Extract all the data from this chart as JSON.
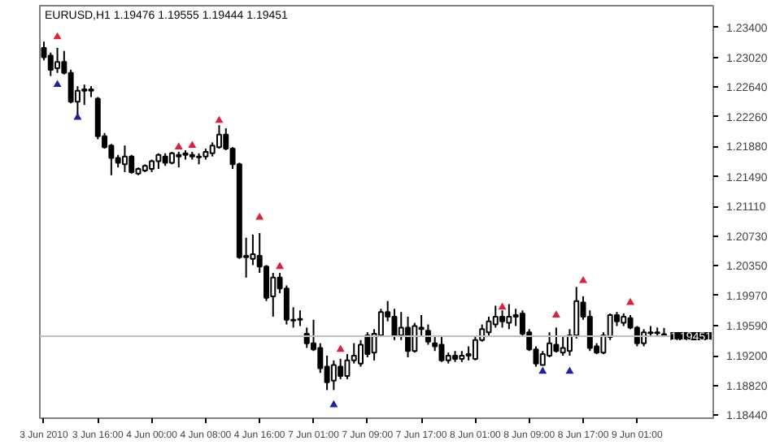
{
  "chart_data": {
    "type": "candlestick",
    "title": "EURUSD,H1  1.19476 1.19555 1.19444 1.19451",
    "categories": [
      "3 Jun 2010",
      null,
      null,
      null,
      null,
      null,
      null,
      null,
      "3 Jun 16:00",
      null,
      null,
      null,
      null,
      null,
      null,
      null,
      "4 Jun 00:00",
      null,
      null,
      null,
      null,
      null,
      null,
      null,
      "4 Jun 08:00",
      null,
      null,
      null,
      null,
      null,
      null,
      null,
      "4 Jun 16:00",
      null,
      null,
      null,
      null,
      null,
      null,
      null,
      "7 Jun 01:00",
      null,
      null,
      null,
      null,
      null,
      null,
      null,
      "7 Jun 09:00",
      null,
      null,
      null,
      null,
      null,
      null,
      null,
      "7 Jun 17:00",
      null,
      null,
      null,
      null,
      null,
      null,
      null,
      "8 Jun 01:00",
      null,
      null,
      null,
      null,
      null,
      null,
      null,
      "8 Jun 09:00",
      null,
      null,
      null,
      null,
      null,
      null,
      null,
      "8 Jun 17:00",
      null,
      null,
      null,
      null,
      null,
      null,
      null,
      "9 Jun 01:00",
      null,
      null,
      null,
      null
    ],
    "ohlc": [
      [
        1.2314,
        1.2322,
        1.2298,
        1.2302
      ],
      [
        1.2304,
        1.2308,
        1.2278,
        1.2286
      ],
      [
        1.2288,
        1.2314,
        1.2282,
        1.2296
      ],
      [
        1.2296,
        1.231,
        1.228,
        1.2282
      ],
      [
        1.2282,
        1.2286,
        1.2243,
        1.2245
      ],
      [
        1.2245,
        1.2265,
        1.2229,
        1.2259
      ],
      [
        1.2259,
        1.2267,
        1.2241,
        1.2261
      ],
      [
        1.2261,
        1.2265,
        1.2251,
        1.2259
      ],
      [
        1.2249,
        1.2251,
        1.2197,
        1.2201
      ],
      [
        1.2201,
        1.2205,
        1.2185,
        1.2187
      ],
      [
        1.2189,
        1.2191,
        1.2151,
        1.2173
      ],
      [
        1.2173,
        1.2177,
        1.2161,
        1.2167
      ],
      [
        1.2165,
        1.2189,
        1.2155,
        1.2175
      ],
      [
        1.2175,
        1.2177,
        1.2153,
        1.2155
      ],
      [
        1.2153,
        1.2161,
        1.2151,
        1.2159
      ],
      [
        1.2157,
        1.2165,
        1.2155,
        1.2163
      ],
      [
        1.2159,
        1.2171,
        1.2155,
        1.2169
      ],
      [
        1.2169,
        1.2179,
        1.2159,
        1.2177
      ],
      [
        1.2175,
        1.2179,
        1.2163,
        1.2167
      ],
      [
        1.2167,
        1.2181,
        1.2165,
        1.2179
      ],
      [
        1.2175,
        1.2181,
        1.2161,
        1.2177
      ],
      [
        1.2177,
        1.2183,
        1.2171,
        1.2179
      ],
      [
        1.2177,
        1.2181,
        1.2171,
        1.2175
      ],
      [
        1.2175,
        1.2179,
        1.2165,
        1.2174
      ],
      [
        1.2175,
        1.2185,
        1.2171,
        1.2181
      ],
      [
        1.2179,
        1.2193,
        1.2175,
        1.2189
      ],
      [
        1.2187,
        1.2215,
        1.2185,
        1.2203
      ],
      [
        1.2203,
        1.2211,
        1.2183,
        1.2185
      ],
      [
        1.2185,
        1.2187,
        1.2159,
        1.2165
      ],
      [
        1.2165,
        1.2167,
        1.2044,
        1.2046
      ],
      [
        1.2048,
        1.2071,
        1.202,
        1.2046
      ],
      [
        1.2044,
        1.2075,
        1.2036,
        1.205
      ],
      [
        1.2048,
        1.2077,
        1.2026,
        1.2034
      ],
      [
        1.2034,
        1.2036,
        1.199,
        1.1994
      ],
      [
        1.1996,
        1.2026,
        1.197,
        1.202
      ],
      [
        1.202,
        1.2026,
        1.2,
        1.2006
      ],
      [
        1.2006,
        1.201,
        1.196,
        1.1966
      ],
      [
        1.1966,
        1.1982,
        1.1956,
        1.1965
      ],
      [
        1.1966,
        1.1978,
        1.1958,
        1.1967
      ],
      [
        1.1948,
        1.1956,
        1.193,
        1.1936
      ],
      [
        1.1936,
        1.1966,
        1.1926,
        1.1928
      ],
      [
        1.193,
        1.1936,
        1.1898,
        1.1904
      ],
      [
        1.1906,
        1.192,
        1.1876,
        1.1886
      ],
      [
        1.1888,
        1.1914,
        1.1876,
        1.1908
      ],
      [
        1.1906,
        1.1916,
        1.189,
        1.1894
      ],
      [
        1.1894,
        1.1922,
        1.189,
        1.1914
      ],
      [
        1.1914,
        1.1936,
        1.191,
        1.192
      ],
      [
        1.191,
        1.194,
        1.1906,
        1.1934
      ],
      [
        1.1946,
        1.195,
        1.1918,
        1.1922
      ],
      [
        1.1924,
        1.1954,
        1.1914,
        1.1948
      ],
      [
        1.1946,
        1.198,
        1.1944,
        1.1976
      ],
      [
        1.1976,
        1.199,
        1.1964,
        1.197
      ],
      [
        1.197,
        1.198,
        1.194,
        1.1946
      ],
      [
        1.1946,
        1.1976,
        1.194,
        1.1956
      ],
      [
        1.1956,
        1.197,
        1.1918,
        1.1926
      ],
      [
        1.1926,
        1.1962,
        1.1924,
        1.1958
      ],
      [
        1.1954,
        1.1972,
        1.1946,
        1.1956
      ],
      [
        1.1952,
        1.196,
        1.1934,
        1.1938
      ],
      [
        1.1936,
        1.1946,
        1.1926,
        1.1932
      ],
      [
        1.1934,
        1.1946,
        1.1912,
        1.1914
      ],
      [
        1.1914,
        1.1924,
        1.191,
        1.192
      ],
      [
        1.192,
        1.1926,
        1.1912,
        1.1916
      ],
      [
        1.1916,
        1.1926,
        1.1912,
        1.192
      ],
      [
        1.192,
        1.1932,
        1.1914,
        1.1922
      ],
      [
        1.1916,
        1.1944,
        1.1914,
        1.194
      ],
      [
        1.194,
        1.196,
        1.1938,
        1.1954
      ],
      [
        1.195,
        1.197,
        1.1946,
        1.1964
      ],
      [
        1.196,
        1.1984,
        1.1956,
        1.197
      ],
      [
        1.197,
        1.1978,
        1.1956,
        1.1964
      ],
      [
        1.1962,
        1.1986,
        1.1954,
        1.197
      ],
      [
        1.197,
        1.198,
        1.1958,
        1.1972
      ],
      [
        1.1974,
        1.1978,
        1.1944,
        1.1948
      ],
      [
        1.195,
        1.1954,
        1.1926,
        1.1928
      ],
      [
        1.1928,
        1.1932,
        1.1906,
        1.191
      ],
      [
        1.1908,
        1.1926,
        1.1908,
        1.1922
      ],
      [
        1.192,
        1.195,
        1.1918,
        1.1936
      ],
      [
        1.1934,
        1.1956,
        1.1924,
        1.1926
      ],
      [
        1.1924,
        1.1946,
        1.192,
        1.193
      ],
      [
        1.1926,
        1.1954,
        1.192,
        1.1946
      ],
      [
        1.1946,
        1.2008,
        1.1942,
        1.199
      ],
      [
        1.1988,
        1.1996,
        1.1966,
        1.197
      ],
      [
        1.197,
        1.1978,
        1.1926,
        1.193
      ],
      [
        1.1932,
        1.1936,
        1.1922,
        1.1924
      ],
      [
        1.1924,
        1.195,
        1.1922,
        1.1946
      ],
      [
        1.1944,
        1.1974,
        1.194,
        1.1972
      ],
      [
        1.1972,
        1.1976,
        1.1958,
        1.1964
      ],
      [
        1.1962,
        1.1974,
        1.1958,
        1.197
      ],
      [
        1.1968,
        1.1972,
        1.1954,
        1.1956
      ],
      [
        1.1956,
        1.1958,
        1.1932,
        1.1936
      ],
      [
        1.1936,
        1.1954,
        1.1932,
        1.195
      ],
      [
        1.1949,
        1.1958,
        1.1944,
        1.195
      ],
      [
        1.195,
        1.1956,
        1.1944,
        1.1949
      ],
      [
        1.19476,
        1.19555,
        1.19444,
        1.19451
      ]
    ],
    "series": [
      {
        "type": "scatter",
        "marker": "triangle",
        "color": "#e0203a",
        "values": [
          null,
          null,
          1.2328,
          null,
          null,
          null,
          null,
          null,
          null,
          null,
          null,
          null,
          null,
          null,
          null,
          null,
          null,
          null,
          null,
          null,
          1.2187,
          null,
          1.2189,
          null,
          null,
          null,
          1.2221,
          null,
          null,
          null,
          null,
          null,
          1.2097,
          null,
          null,
          1.2034,
          null,
          null,
          null,
          null,
          null,
          null,
          null,
          null,
          1.1928,
          null,
          null,
          null,
          null,
          null,
          null,
          null,
          null,
          null,
          null,
          null,
          null,
          null,
          null,
          null,
          null,
          null,
          null,
          null,
          null,
          null,
          null,
          null,
          1.1982,
          null,
          null,
          null,
          null,
          null,
          null,
          null,
          1.1972,
          null,
          null,
          null,
          1.2016,
          null,
          null,
          null,
          null,
          null,
          null,
          1.1988,
          null,
          null,
          null,
          null,
          null
        ]
      },
      {
        "type": "scatter",
        "marker": "triangle",
        "color": "#2020a0",
        "values": [
          null,
          null,
          1.2267,
          null,
          null,
          1.2225,
          null,
          null,
          null,
          null,
          null,
          null,
          null,
          null,
          null,
          null,
          null,
          null,
          null,
          null,
          null,
          null,
          null,
          null,
          null,
          null,
          null,
          null,
          null,
          null,
          null,
          null,
          null,
          null,
          null,
          null,
          null,
          null,
          null,
          null,
          null,
          null,
          null,
          1.1857,
          null,
          null,
          null,
          null,
          null,
          null,
          null,
          null,
          null,
          null,
          null,
          null,
          null,
          null,
          null,
          null,
          null,
          null,
          null,
          null,
          null,
          null,
          null,
          null,
          null,
          null,
          null,
          null,
          null,
          null,
          1.19,
          null,
          null,
          null,
          1.19,
          null,
          null,
          null,
          null,
          null,
          null,
          null,
          null,
          null,
          null,
          null,
          null,
          null,
          null
        ]
      }
    ],
    "ylim": [
      1.184,
      1.2368
    ],
    "yticks": [
      {
        "value": 1.234,
        "label": "1.23400"
      },
      {
        "value": 1.2302,
        "label": "1.23020"
      },
      {
        "value": 1.2264,
        "label": "1.22640"
      },
      {
        "value": 1.2226,
        "label": "1.22260"
      },
      {
        "value": 1.2188,
        "label": "1.21880"
      },
      {
        "value": 1.2149,
        "label": "1.21490"
      },
      {
        "value": 1.2111,
        "label": "1.21110"
      },
      {
        "value": 1.2073,
        "label": "1.20730"
      },
      {
        "value": 1.2035,
        "label": "1.20350"
      },
      {
        "value": 1.1997,
        "label": "1.19970"
      },
      {
        "value": 1.1959,
        "label": "1.19590"
      },
      {
        "value": 1.192,
        "label": "1.19200"
      },
      {
        "value": 1.1882,
        "label": "1.18820"
      },
      {
        "value": 1.1844,
        "label": "1.18440"
      }
    ],
    "ref_lines": [
      {
        "axis": "y",
        "value": 1.19451,
        "label": "1.19451",
        "color": "#c0c0c0"
      }
    ]
  }
}
